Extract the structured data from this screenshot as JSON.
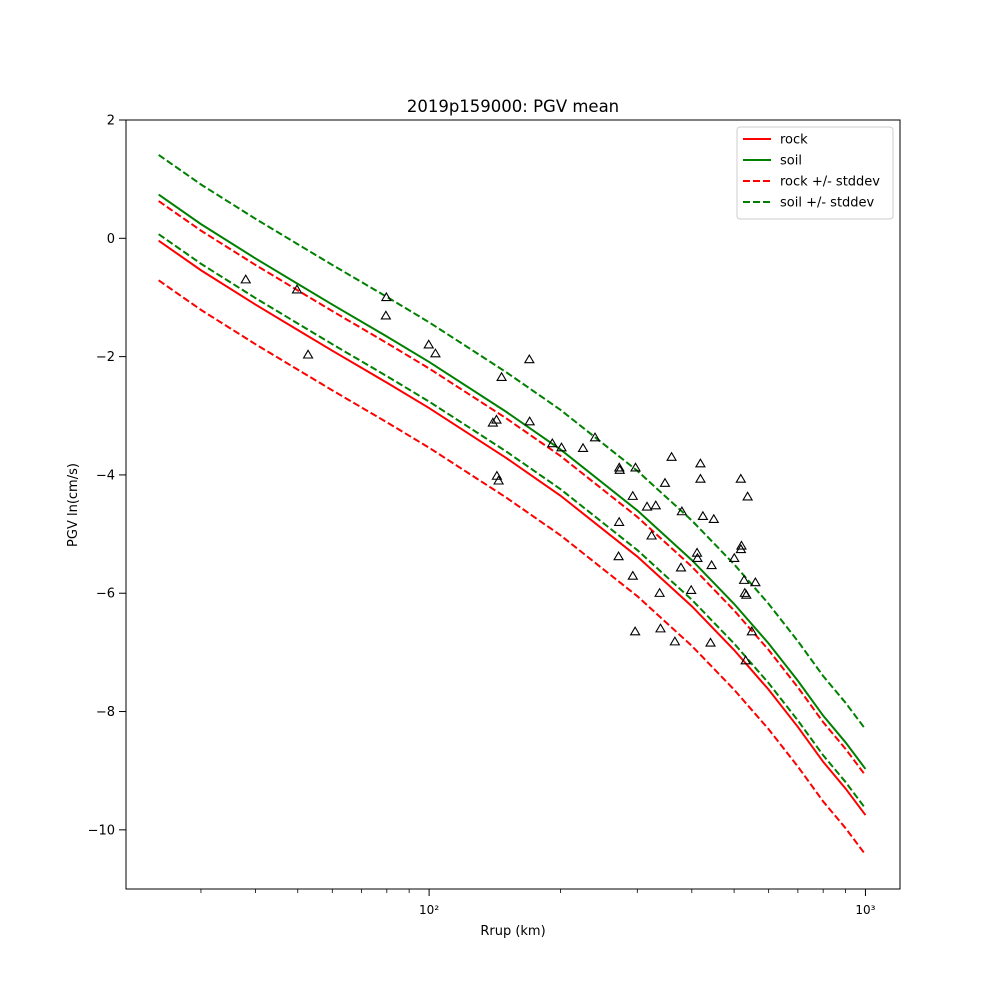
{
  "chart_data": {
    "type": "line",
    "title": "2019p159000: PGV mean",
    "xlabel": "Rrup (km)",
    "ylabel": "PGV ln(cm/s)",
    "x_scale": "log",
    "xlim": [
      20.2,
      1200
    ],
    "ylim": [
      -11,
      2
    ],
    "x_major_ticks": [
      100,
      1000
    ],
    "x_tick_labels": [
      "10²",
      "10³"
    ],
    "x_minor_ticks": [
      30,
      40,
      50,
      60,
      70,
      80,
      90,
      200,
      300,
      400,
      500,
      600,
      700,
      800,
      900
    ],
    "y_ticks": [
      -10,
      -8,
      -6,
      -4,
      -2,
      0,
      2
    ],
    "y_tick_labels": [
      "−10",
      "−8",
      "−6",
      "−4",
      "−2",
      "0",
      "2"
    ],
    "grid": false,
    "legend_position": "top-right",
    "series": [
      {
        "name": "rock",
        "color": "#ff0000",
        "style": "solid",
        "x": [
          24,
          30,
          40,
          50,
          60,
          80,
          100,
          150,
          200,
          300,
          400,
          500,
          600,
          700,
          800,
          900,
          1000
        ],
        "y": [
          -0.04,
          -0.54,
          -1.12,
          -1.55,
          -1.9,
          -2.44,
          -2.87,
          -3.71,
          -4.35,
          -5.38,
          -6.22,
          -6.96,
          -7.63,
          -8.26,
          -8.85,
          -9.3,
          -9.75
        ]
      },
      {
        "name": "soil",
        "color": "#008000",
        "style": "solid",
        "x": [
          24,
          30,
          40,
          50,
          60,
          80,
          100,
          150,
          200,
          300,
          400,
          500,
          600,
          700,
          800,
          900,
          1000
        ],
        "y": [
          0.74,
          0.24,
          -0.34,
          -0.77,
          -1.12,
          -1.66,
          -2.09,
          -2.93,
          -3.57,
          -4.6,
          -5.44,
          -6.18,
          -6.85,
          -7.48,
          -8.07,
          -8.52,
          -8.97
        ]
      },
      {
        "name": "rock +/- stddev",
        "color": "#ff0000",
        "style": "dashed",
        "x": [
          24,
          30,
          40,
          50,
          60,
          80,
          100,
          150,
          200,
          300,
          400,
          500,
          600,
          700,
          800,
          900,
          1000
        ],
        "y": [
          0.63,
          0.13,
          -0.45,
          -0.88,
          -1.23,
          -1.77,
          -2.2,
          -3.04,
          -3.68,
          -4.71,
          -5.55,
          -6.29,
          -6.96,
          -7.59,
          -8.18,
          -8.63,
          -9.08
        ]
      },
      {
        "name": "",
        "color": "#ff0000",
        "style": "dashed",
        "x": [
          24,
          30,
          40,
          50,
          60,
          80,
          100,
          150,
          200,
          300,
          400,
          500,
          600,
          700,
          800,
          900,
          1000
        ],
        "y": [
          -0.71,
          -1.21,
          -1.79,
          -2.22,
          -2.57,
          -3.11,
          -3.54,
          -4.38,
          -5.02,
          -6.05,
          -6.89,
          -7.63,
          -8.3,
          -8.93,
          -9.52,
          -9.97,
          -10.42
        ]
      },
      {
        "name": "soil +/- stddev",
        "color": "#008000",
        "style": "dashed",
        "x": [
          24,
          30,
          40,
          50,
          60,
          80,
          100,
          150,
          200,
          300,
          400,
          500,
          600,
          700,
          800,
          900,
          1000
        ],
        "y": [
          1.41,
          0.91,
          0.33,
          -0.1,
          -0.45,
          -0.99,
          -1.42,
          -2.26,
          -2.9,
          -3.93,
          -4.77,
          -5.51,
          -6.18,
          -6.81,
          -7.4,
          -7.85,
          -8.3
        ]
      },
      {
        "name": "",
        "color": "#008000",
        "style": "dashed",
        "x": [
          24,
          30,
          40,
          50,
          60,
          80,
          100,
          150,
          200,
          300,
          400,
          500,
          600,
          700,
          800,
          900,
          1000
        ],
        "y": [
          0.07,
          -0.43,
          -1.01,
          -1.44,
          -1.79,
          -2.33,
          -2.76,
          -3.6,
          -4.24,
          -5.27,
          -6.11,
          -6.85,
          -7.52,
          -8.15,
          -8.74,
          -9.19,
          -9.64
        ]
      }
    ],
    "observations": {
      "marker": "triangle-open",
      "color": "#000000",
      "points": [
        [
          38,
          -0.7
        ],
        [
          49.8,
          -0.87
        ],
        [
          52.8,
          -1.97
        ],
        [
          79.8,
          -1.0
        ],
        [
          79.6,
          -1.31
        ],
        [
          99.8,
          -1.8
        ],
        [
          103.4,
          -1.95
        ],
        [
          140,
          -3.12
        ],
        [
          142.7,
          -3.07
        ],
        [
          143,
          -4.02
        ],
        [
          144.3,
          -4.1
        ],
        [
          146.6,
          -2.35
        ],
        [
          169.7,
          -2.05
        ],
        [
          170,
          -3.1
        ],
        [
          191.6,
          -3.47
        ],
        [
          201.1,
          -3.54
        ],
        [
          225.3,
          -3.55
        ],
        [
          240,
          -3.37
        ],
        [
          272.8,
          -3.88
        ],
        [
          273.4,
          -3.92
        ],
        [
          272.6,
          -4.8
        ],
        [
          271.8,
          -5.38
        ],
        [
          292.9,
          -4.36
        ],
        [
          293,
          -5.71
        ],
        [
          296.6,
          -6.65
        ],
        [
          297.2,
          -3.88
        ],
        [
          315.8,
          -4.54
        ],
        [
          323.5,
          -5.03
        ],
        [
          330.7,
          -4.52
        ],
        [
          337.5,
          -6.0
        ],
        [
          339.1,
          -6.6
        ],
        [
          347.2,
          -4.14
        ],
        [
          359.5,
          -3.7
        ],
        [
          365.8,
          -6.82
        ],
        [
          377.8,
          -5.57
        ],
        [
          379.5,
          -4.62
        ],
        [
          398.7,
          -5.95
        ],
        [
          411.2,
          -5.32
        ],
        [
          412.1,
          -5.41
        ],
        [
          418.6,
          -3.81
        ],
        [
          418.7,
          -4.07
        ],
        [
          424.1,
          -4.7
        ],
        [
          441.5,
          -6.84
        ],
        [
          444,
          -5.53
        ],
        [
          449.2,
          -4.75
        ],
        [
          500.5,
          -5.41
        ],
        [
          518,
          -4.07
        ],
        [
          519.8,
          -5.2
        ],
        [
          518.3,
          -5.26
        ],
        [
          527,
          -5.78
        ],
        [
          529,
          -6.0
        ],
        [
          531.5,
          -7.14
        ],
        [
          533.2,
          -6.03
        ],
        [
          537,
          -4.37
        ],
        [
          549,
          -6.65
        ],
        [
          559.5,
          -5.82
        ]
      ]
    }
  }
}
